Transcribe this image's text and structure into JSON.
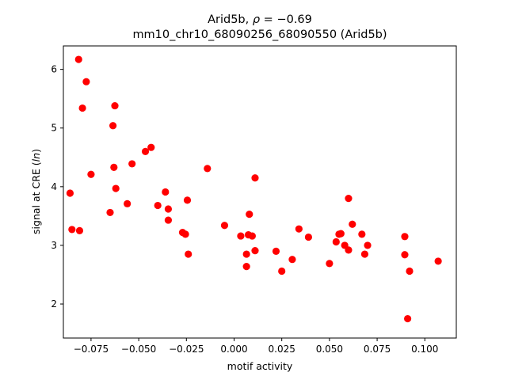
{
  "chart_data": {
    "type": "scatter",
    "title_line1_prefix": "Arid5b, ",
    "title_rho_symbol": "ρ",
    "title_rho_value": " = −0.69",
    "title_line2": "mm10_chr10_68090256_68090550 (Arid5b)",
    "xlabel": "motif activity",
    "ylabel_prefix": "signal at CRE (",
    "ylabel_italic": "ln",
    "ylabel_suffix": ")",
    "xlim": [
      -0.0895,
      0.1165
    ],
    "ylim": [
      1.42,
      6.4
    ],
    "grid": false,
    "marker_color": "#ff0000",
    "x_ticks": [
      {
        "value": -0.075,
        "label": "−0.075"
      },
      {
        "value": -0.05,
        "label": "−0.050"
      },
      {
        "value": -0.025,
        "label": "−0.025"
      },
      {
        "value": 0.0,
        "label": "0.000"
      },
      {
        "value": 0.025,
        "label": "0.025"
      },
      {
        "value": 0.05,
        "label": "0.050"
      },
      {
        "value": 0.075,
        "label": "0.075"
      },
      {
        "value": 0.1,
        "label": "0.100"
      }
    ],
    "y_ticks": [
      {
        "value": 2,
        "label": "2"
      },
      {
        "value": 3,
        "label": "3"
      },
      {
        "value": 4,
        "label": "4"
      },
      {
        "value": 5,
        "label": "5"
      },
      {
        "value": 6,
        "label": "6"
      }
    ],
    "points": [
      {
        "x": -0.0815,
        "y": 6.17
      },
      {
        "x": -0.0775,
        "y": 5.79
      },
      {
        "x": -0.0795,
        "y": 5.34
      },
      {
        "x": -0.0625,
        "y": 5.38
      },
      {
        "x": -0.0635,
        "y": 5.04
      },
      {
        "x": -0.0435,
        "y": 4.67
      },
      {
        "x": -0.0465,
        "y": 4.6
      },
      {
        "x": -0.0535,
        "y": 4.39
      },
      {
        "x": -0.063,
        "y": 4.33
      },
      {
        "x": -0.075,
        "y": 4.21
      },
      {
        "x": -0.062,
        "y": 3.97
      },
      {
        "x": -0.086,
        "y": 3.89
      },
      {
        "x": -0.056,
        "y": 3.71
      },
      {
        "x": -0.065,
        "y": 3.56
      },
      {
        "x": -0.085,
        "y": 3.27
      },
      {
        "x": -0.081,
        "y": 3.25
      },
      {
        "x": -0.036,
        "y": 3.91
      },
      {
        "x": -0.04,
        "y": 3.68
      },
      {
        "x": -0.0345,
        "y": 3.62
      },
      {
        "x": -0.0245,
        "y": 3.77
      },
      {
        "x": -0.0345,
        "y": 3.43
      },
      {
        "x": -0.027,
        "y": 3.22
      },
      {
        "x": -0.0255,
        "y": 3.19
      },
      {
        "x": -0.024,
        "y": 2.85
      },
      {
        "x": -0.014,
        "y": 4.31
      },
      {
        "x": -0.005,
        "y": 3.34
      },
      {
        "x": 0.011,
        "y": 4.15
      },
      {
        "x": 0.008,
        "y": 3.53
      },
      {
        "x": 0.0035,
        "y": 3.16
      },
      {
        "x": 0.0075,
        "y": 3.18
      },
      {
        "x": 0.0095,
        "y": 3.16
      },
      {
        "x": 0.0065,
        "y": 2.85
      },
      {
        "x": 0.011,
        "y": 2.91
      },
      {
        "x": 0.0065,
        "y": 2.64
      },
      {
        "x": 0.022,
        "y": 2.9
      },
      {
        "x": 0.025,
        "y": 2.56
      },
      {
        "x": 0.0305,
        "y": 2.76
      },
      {
        "x": 0.034,
        "y": 3.28
      },
      {
        "x": 0.039,
        "y": 3.14
      },
      {
        "x": 0.05,
        "y": 2.69
      },
      {
        "x": 0.06,
        "y": 3.8
      },
      {
        "x": 0.062,
        "y": 3.36
      },
      {
        "x": 0.055,
        "y": 3.19
      },
      {
        "x": 0.056,
        "y": 3.2
      },
      {
        "x": 0.0535,
        "y": 3.06
      },
      {
        "x": 0.058,
        "y": 3.0
      },
      {
        "x": 0.06,
        "y": 2.92
      },
      {
        "x": 0.067,
        "y": 3.19
      },
      {
        "x": 0.07,
        "y": 3.0
      },
      {
        "x": 0.0685,
        "y": 2.85
      },
      {
        "x": 0.0895,
        "y": 3.15
      },
      {
        "x": 0.0895,
        "y": 2.84
      },
      {
        "x": 0.092,
        "y": 2.56
      },
      {
        "x": 0.091,
        "y": 1.75
      },
      {
        "x": 0.107,
        "y": 2.73
      }
    ]
  }
}
